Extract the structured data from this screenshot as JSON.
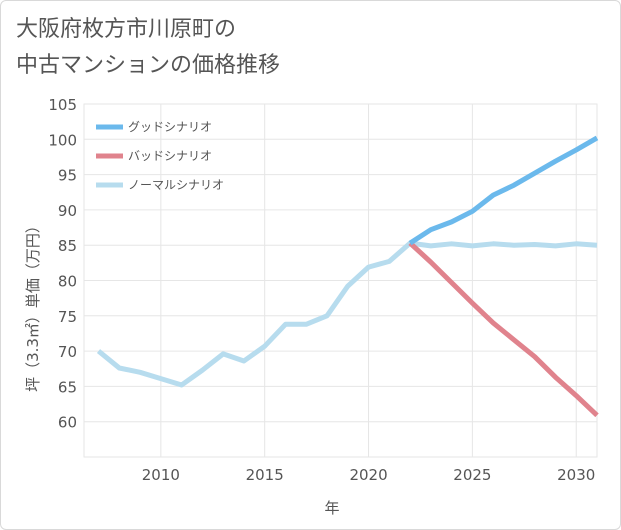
{
  "chart_data": {
    "type": "line",
    "title_line1": "大阪府枚方市川原町の",
    "title_line2": "中古マンションの価格推移",
    "xlabel": "年",
    "ylabel": "坪（3.3㎡）単価（万円）",
    "xlim": [
      2006.3,
      2031
    ],
    "ylim": [
      55,
      105
    ],
    "x_ticks": [
      2010,
      2015,
      2020,
      2025,
      2030
    ],
    "y_ticks": [
      60,
      65,
      70,
      75,
      80,
      85,
      90,
      95,
      100,
      105
    ],
    "grid": true,
    "legend_position": "top-left",
    "series": [
      {
        "name": "グッドシナリオ",
        "color": "#6bb9ec",
        "x": [
          2022,
          2023,
          2024,
          2025,
          2026,
          2027,
          2028,
          2029,
          2030,
          2031
        ],
        "values": [
          85.3,
          87.2,
          88.3,
          89.8,
          92.1,
          93.5,
          95.2,
          96.9,
          98.5,
          100.2
        ]
      },
      {
        "name": "バッドシナリオ",
        "color": "#e0838d",
        "x": [
          2022,
          2023,
          2024,
          2025,
          2026,
          2027,
          2028,
          2029,
          2030,
          2031
        ],
        "values": [
          85.3,
          82.6,
          79.7,
          76.8,
          74.0,
          71.6,
          69.2,
          66.3,
          63.7,
          60.9
        ]
      },
      {
        "name": "ノーマルシナリオ",
        "color": "#b7dcee",
        "x": [
          2007,
          2008,
          2009,
          2010,
          2011,
          2012,
          2013,
          2014,
          2015,
          2016,
          2017,
          2018,
          2019,
          2020,
          2021,
          2022,
          2023,
          2024,
          2025,
          2026,
          2027,
          2028,
          2029,
          2030,
          2031
        ],
        "values": [
          70.0,
          67.6,
          67.0,
          66.1,
          65.2,
          67.3,
          69.6,
          68.6,
          70.7,
          73.8,
          73.8,
          75.0,
          79.2,
          81.9,
          82.7,
          85.3,
          84.9,
          85.2,
          84.9,
          85.2,
          85.0,
          85.1,
          84.9,
          85.2,
          85.0
        ]
      }
    ]
  }
}
